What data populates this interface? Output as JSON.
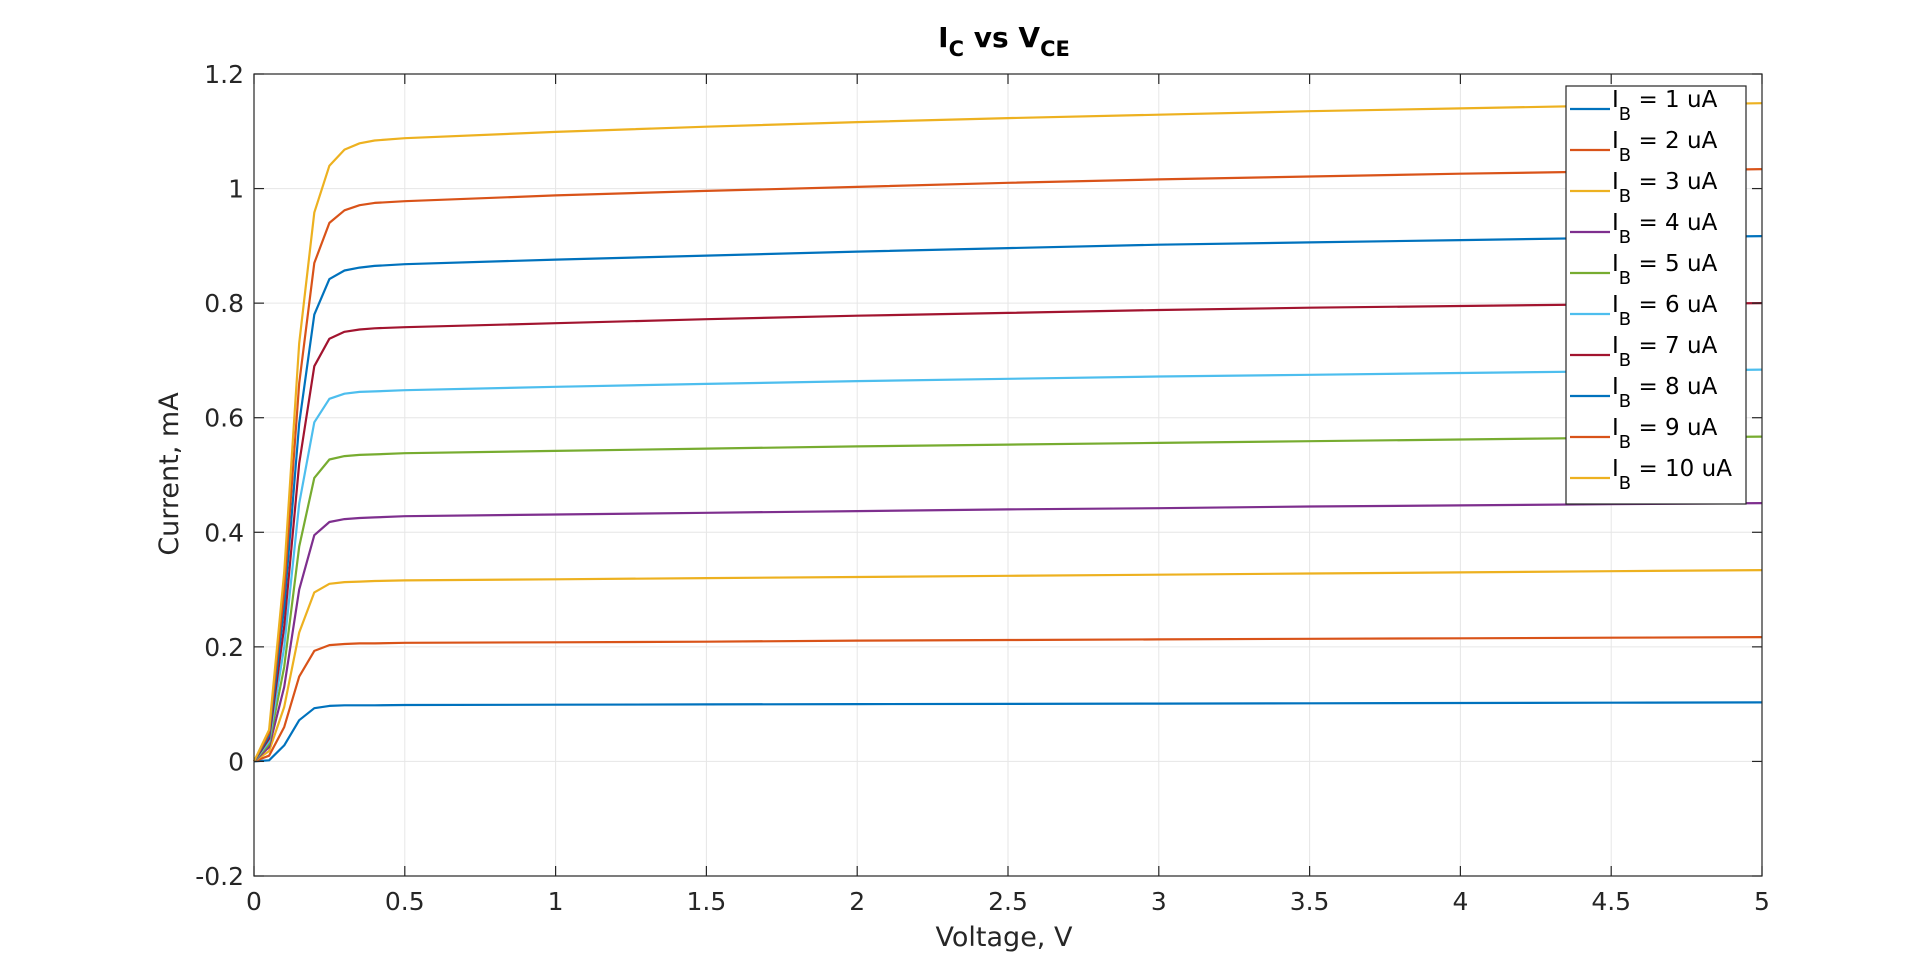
{
  "chart_data": {
    "type": "line",
    "title": {
      "main": "I",
      "main_sub": "C",
      "mid": " vs V",
      "mid_sub": "CE"
    },
    "xlabel": "Voltage, V",
    "ylabel": "Current, mA",
    "xlim": [
      0,
      5
    ],
    "ylim": [
      -0.2,
      1.2
    ],
    "xticks": [
      0,
      0.5,
      1,
      1.5,
      2,
      2.5,
      3,
      3.5,
      4,
      4.5,
      5
    ],
    "xtick_labels": [
      "0",
      "0.5",
      "1",
      "1.5",
      "2",
      "2.5",
      "3",
      "3.5",
      "4",
      "4.5",
      "5"
    ],
    "yticks": [
      -0.2,
      0,
      0.2,
      0.4,
      0.6,
      0.8,
      1,
      1.2
    ],
    "ytick_labels": [
      "-0.2",
      "0",
      "0.2",
      "0.4",
      "0.6",
      "0.8",
      "1",
      "1.2"
    ],
    "grid": true,
    "legend_position": "top-right",
    "x": [
      0,
      0.05,
      0.1,
      0.15,
      0.2,
      0.25,
      0.3,
      0.35,
      0.4,
      0.5,
      1,
      1.5,
      2,
      2.5,
      3,
      3.5,
      4,
      4.5,
      5
    ],
    "series": [
      {
        "name_main": "I",
        "name_sub": "B",
        "name_rest": " = 1 uA",
        "color": "#0072BD",
        "values": [
          0,
          0.002,
          0.028,
          0.072,
          0.093,
          0.097,
          0.098,
          0.098,
          0.098,
          0.0985,
          0.099,
          0.0995,
          0.1,
          0.1005,
          0.101,
          0.1015,
          0.102,
          0.1025,
          0.103
        ]
      },
      {
        "name_main": "I",
        "name_sub": "B",
        "name_rest": " = 2 uA",
        "color": "#D95319",
        "values": [
          0,
          0.01,
          0.06,
          0.148,
          0.193,
          0.203,
          0.205,
          0.206,
          0.206,
          0.207,
          0.208,
          0.209,
          0.211,
          0.212,
          0.213,
          0.214,
          0.215,
          0.216,
          0.217
        ]
      },
      {
        "name_main": "I",
        "name_sub": "B",
        "name_rest": " = 3 uA",
        "color": "#EDB120",
        "values": [
          0,
          0.018,
          0.095,
          0.225,
          0.295,
          0.31,
          0.313,
          0.314,
          0.315,
          0.316,
          0.318,
          0.32,
          0.322,
          0.324,
          0.326,
          0.328,
          0.33,
          0.332,
          0.334
        ]
      },
      {
        "name_main": "I",
        "name_sub": "B",
        "name_rest": " = 4 uA",
        "color": "#7E2F8E",
        "values": [
          0,
          0.025,
          0.13,
          0.3,
          0.395,
          0.418,
          0.423,
          0.425,
          0.426,
          0.428,
          0.431,
          0.434,
          0.437,
          0.44,
          0.442,
          0.445,
          0.447,
          0.449,
          0.451
        ]
      },
      {
        "name_main": "I",
        "name_sub": "B",
        "name_rest": " = 5 uA",
        "color": "#77AC30",
        "values": [
          0,
          0.03,
          0.165,
          0.375,
          0.495,
          0.527,
          0.533,
          0.535,
          0.536,
          0.538,
          0.542,
          0.546,
          0.55,
          0.553,
          0.556,
          0.559,
          0.562,
          0.565,
          0.567
        ]
      },
      {
        "name_main": "I",
        "name_sub": "B",
        "name_rest": " = 6 uA",
        "color": "#4DBEEE",
        "values": [
          0,
          0.035,
          0.2,
          0.45,
          0.592,
          0.633,
          0.642,
          0.645,
          0.646,
          0.648,
          0.654,
          0.659,
          0.664,
          0.668,
          0.672,
          0.675,
          0.678,
          0.681,
          0.684
        ]
      },
      {
        "name_main": "I",
        "name_sub": "B",
        "name_rest": " = 7 uA",
        "color": "#A2142F",
        "values": [
          0,
          0.04,
          0.235,
          0.52,
          0.69,
          0.738,
          0.75,
          0.754,
          0.756,
          0.758,
          0.765,
          0.772,
          0.778,
          0.783,
          0.788,
          0.792,
          0.795,
          0.798,
          0.8
        ]
      },
      {
        "name_main": "I",
        "name_sub": "B",
        "name_rest": " = 8 uA",
        "color": "#0072BD",
        "values": [
          0,
          0.045,
          0.27,
          0.59,
          0.78,
          0.842,
          0.857,
          0.862,
          0.865,
          0.868,
          0.876,
          0.883,
          0.89,
          0.896,
          0.902,
          0.906,
          0.91,
          0.914,
          0.917
        ]
      },
      {
        "name_main": "I",
        "name_sub": "B",
        "name_rest": " = 9 uA",
        "color": "#D95319",
        "values": [
          0,
          0.05,
          0.3,
          0.66,
          0.87,
          0.94,
          0.962,
          0.971,
          0.975,
          0.978,
          0.988,
          0.996,
          1.003,
          1.01,
          1.016,
          1.021,
          1.026,
          1.03,
          1.034
        ]
      },
      {
        "name_main": "I",
        "name_sub": "B",
        "name_rest": " = 10 uA",
        "color": "#EDB120",
        "values": [
          0,
          0.055,
          0.33,
          0.73,
          0.958,
          1.04,
          1.068,
          1.079,
          1.084,
          1.088,
          1.099,
          1.108,
          1.116,
          1.123,
          1.129,
          1.135,
          1.14,
          1.145,
          1.149
        ]
      }
    ]
  }
}
